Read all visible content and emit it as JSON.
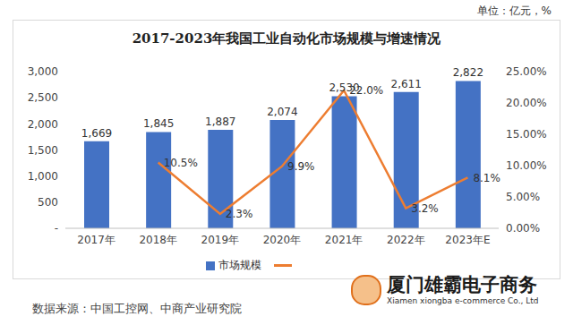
{
  "chart_data": {
    "type": "bar",
    "title": "2017-2023年我国工业自动化市场规模与增速情况",
    "subtitle": "单位：亿元，%",
    "annotations": [
      "数据来源：中国工控网、中商产业研究院",
      "厦门雄霸电子商务",
      "Xiamen xiongba e-commerce Co., Ltd"
    ],
    "categories": [
      "2017年",
      "2018年",
      "2019年",
      "2020年",
      "2021年",
      "2022年",
      "2023年E"
    ],
    "series": [
      {
        "name": "市场规模",
        "type": "bar",
        "color": "#4472c4",
        "values": [
          1669,
          1845,
          1887,
          2074,
          2530,
          2611,
          2822
        ],
        "value_labels": [
          "1,669",
          "1,845",
          "1,887",
          "2,074",
          "2,530",
          "2,611",
          "2,822"
        ]
      },
      {
        "type": "line",
        "axis": "y2",
        "color": "#ed7d31",
        "values": [
          null,
          10.5,
          2.3,
          9.9,
          22.0,
          3.2,
          8.1
        ],
        "value_labels": [
          null,
          "10.5%",
          "2.3%",
          "9.9%",
          "22.0%",
          "3.2%",
          "8.1%"
        ]
      }
    ],
    "ylim": [
      0,
      3000
    ],
    "yticks": [
      {
        "value": 0,
        "label": "-"
      },
      500,
      {
        "value": 1000,
        "label": "1,000"
      },
      {
        "value": 1500,
        "label": "1,500"
      },
      {
        "value": 2000,
        "label": "2,000"
      },
      {
        "value": 2500,
        "label": "2,500"
      },
      {
        "value": 3000,
        "label": "3,000"
      }
    ],
    "y2lim": [
      0,
      25
    ],
    "y2ticks": [
      {
        "value": 0,
        "label": "0.00%"
      },
      {
        "value": 5,
        "label": "5.00%"
      },
      {
        "value": 10,
        "label": "10.00%"
      },
      {
        "value": 15,
        "label": "15.00%"
      },
      {
        "value": 20,
        "label": "20.00%"
      },
      {
        "value": 25,
        "label": "25.00%"
      }
    ],
    "grid": false,
    "data_labels": true
  }
}
